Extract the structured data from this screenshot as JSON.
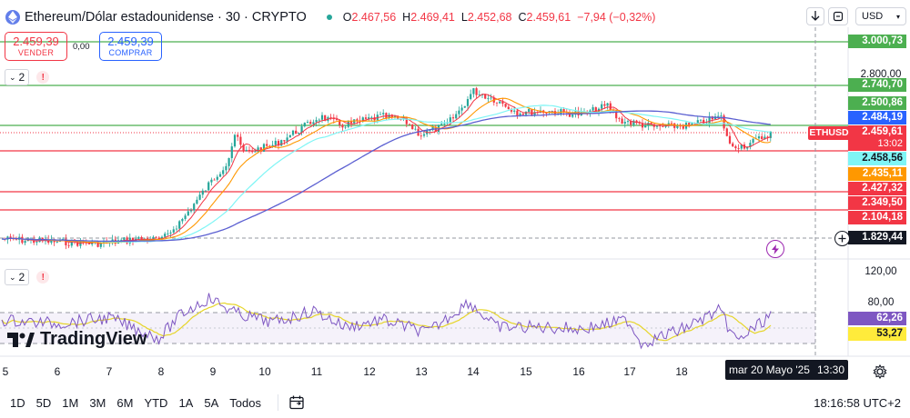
{
  "header": {
    "title": "Ethereum/Dólar estadounidense · 30 · CRYPTO",
    "ohlc": [
      {
        "label": "O",
        "value": "2.467,56"
      },
      {
        "label": "H",
        "value": "2.469,41"
      },
      {
        "label": "L",
        "value": "2.452,68"
      },
      {
        "label": "C",
        "value": "2.459,61"
      }
    ],
    "change": "−7,94 (−0,32%)",
    "currency": "USD"
  },
  "trade": {
    "sell_price": "2.459,39",
    "sell_label": "VENDER",
    "spread": "0,00",
    "buy_price": "2.459,39",
    "buy_label": "COMPRAR"
  },
  "price_pane": {
    "indicator_count": "2"
  },
  "rsi_pane": {
    "indicator_count": "2"
  },
  "price_axis": {
    "ticks": [
      "2.800,00",
      "120,00",
      "80,00"
    ],
    "labels": [
      {
        "value": "3.000,73",
        "bg": "#4caf50",
        "fg": "#ffffff"
      },
      {
        "value": "2.740,70",
        "bg": "#4caf50",
        "fg": "#ffffff"
      },
      {
        "value": "2.500,86",
        "bg": "#4caf50",
        "fg": "#ffffff"
      },
      {
        "value": "2.484,19",
        "bg": "#2962ff",
        "fg": "#ffffff"
      },
      {
        "value": "2.459,61",
        "bg": "#f23645",
        "fg": "#ffffff"
      },
      {
        "value": "13:02",
        "bg": "#f23645",
        "fg": "#ffffff"
      },
      {
        "value": "2.458,56",
        "bg": "#7ff5f5",
        "fg": "#131722"
      },
      {
        "value": "2.435,11",
        "bg": "#ff9800",
        "fg": "#ffffff"
      },
      {
        "value": "2.427,32",
        "bg": "#f23645",
        "fg": "#ffffff"
      },
      {
        "value": "2.349,50",
        "bg": "#f23645",
        "fg": "#ffffff"
      },
      {
        "value": "2.104,18",
        "bg": "#f23645",
        "fg": "#ffffff"
      },
      {
        "value": "1.829,44",
        "bg": "#131722",
        "fg": "#ffffff"
      },
      {
        "value": "62,26",
        "bg": "#7e57c2",
        "fg": "#ffffff"
      },
      {
        "value": "53,27",
        "bg": "#ffeb3b",
        "fg": "#131722"
      }
    ]
  },
  "symbol_tag": "ETHUSD",
  "time_axis": {
    "ticks": [
      "5",
      "6",
      "7",
      "8",
      "9",
      "10",
      "11",
      "12",
      "13",
      "14",
      "15",
      "16",
      "17",
      "18"
    ],
    "crosshair_date": "mar 20 Mayo '25",
    "crosshair_time": "13:30"
  },
  "timeframes": [
    "1D",
    "5D",
    "1M",
    "3M",
    "6M",
    "YTD",
    "1A",
    "5A",
    "Todos"
  ],
  "clock": "18:16:58 UTC+2",
  "brand": "TradingView",
  "colors": {
    "up": "#26a69a",
    "down": "#f23645",
    "support": "#f23645",
    "resistance": "#4caf50",
    "ma_fast": "#f23645",
    "ma_mid": "#ff9800",
    "ma_slow": "#7ff5f5",
    "ma_long": "#5b5fd1",
    "rsi": "#7e57c2",
    "rsi_ma": "#e6d52a"
  }
}
